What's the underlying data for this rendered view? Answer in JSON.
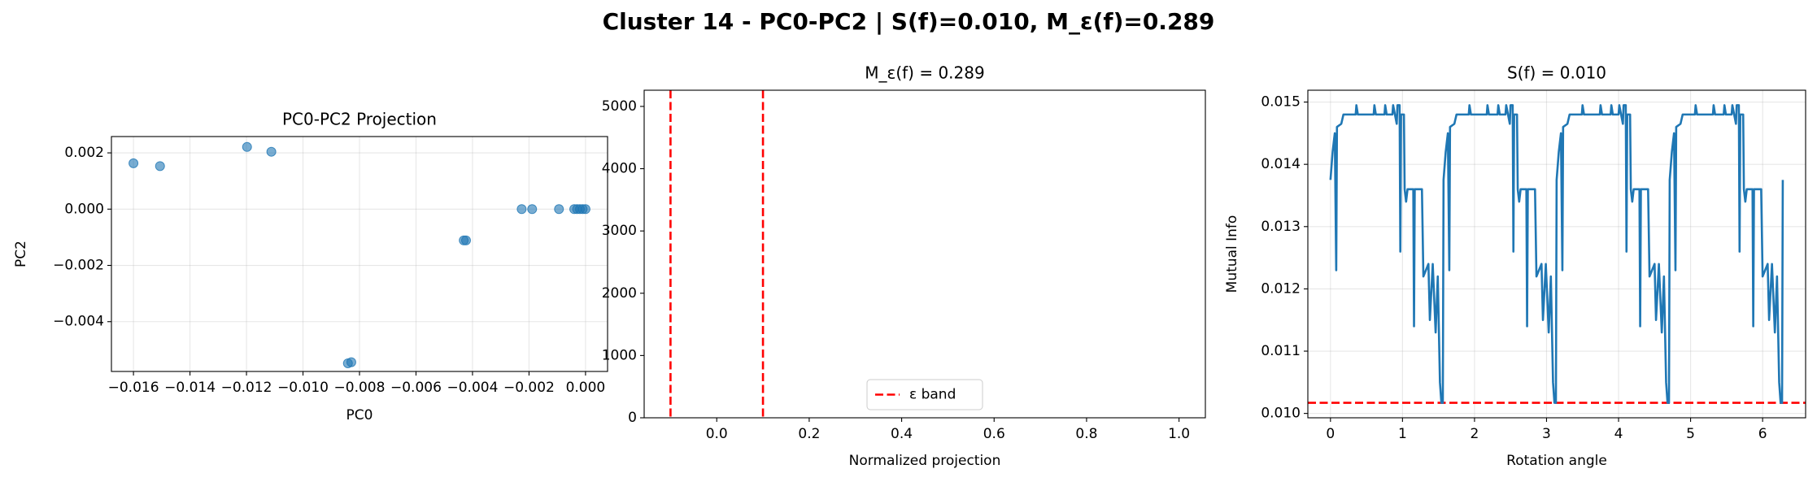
{
  "title": "Cluster 14 - PC0-PC2 | S(f)=0.010, M_ε(f)=0.289",
  "chart_data": [
    {
      "type": "scatter",
      "title": "PC0-PC2 Projection",
      "xlabel": "PC0",
      "ylabel": "PC2",
      "color": "#1f77b4",
      "grid": true,
      "x": [
        -0.016,
        -0.01506,
        -0.01198,
        -0.01112,
        -0.00431,
        -0.00423,
        -0.00829,
        -0.00841,
        -0.00226,
        -0.00189,
        -0.00094,
        -0.0004,
        -0.0003,
        -0.0002,
        -0.0001,
        0.0
      ],
      "values": [
        0.00163,
        0.00153,
        0.00221,
        0.00204,
        -0.00111,
        -0.00111,
        -0.00544,
        -0.00548,
        0.0,
        0.0,
        0.0,
        0.0,
        0.0,
        0.0,
        0.0,
        0.0
      ],
      "xlim": [
        -0.01678,
        0.00078
      ],
      "xticks": [
        {
          "value": -0.016,
          "label": "−0.016"
        },
        {
          "value": -0.014,
          "label": "−0.014"
        },
        {
          "value": -0.012,
          "label": "−0.012"
        },
        {
          "value": -0.01,
          "label": "−0.010"
        },
        {
          "value": -0.008,
          "label": "−0.008"
        },
        {
          "value": -0.006,
          "label": "−0.006"
        },
        {
          "value": -0.004,
          "label": "−0.004"
        },
        {
          "value": -0.002,
          "label": "−0.002"
        },
        {
          "value": 0.0,
          "label": "0.000"
        }
      ],
      "ylim": [
        -0.00577,
        0.00258
      ],
      "yticks": [
        {
          "value": -0.004,
          "label": "−0.004"
        },
        {
          "value": -0.002,
          "label": "−0.002"
        },
        {
          "value": 0.0,
          "label": "0.000"
        },
        {
          "value": 0.002,
          "label": "0.002"
        }
      ]
    },
    {
      "type": "vlines",
      "title": "M_ε(f) = 0.289",
      "xlabel": "Normalized projection",
      "grid": false,
      "legend": "lower center",
      "series": [
        {
          "name": "ε band",
          "color": "#ff0000",
          "values": [
            -0.1,
            0.1
          ]
        }
      ],
      "xlim": [
        -0.157,
        1.057
      ],
      "xticks": [
        {
          "value": 0.0,
          "label": "0.0"
        },
        {
          "value": 0.2,
          "label": "0.2"
        },
        {
          "value": 0.4,
          "label": "0.4"
        },
        {
          "value": 0.6,
          "label": "0.6"
        },
        {
          "value": 0.8,
          "label": "0.8"
        },
        {
          "value": 1.0,
          "label": "1.0"
        }
      ],
      "ylim": [
        0,
        5260
      ],
      "yticks": [
        0,
        1000,
        2000,
        3000,
        4000,
        5000
      ]
    },
    {
      "type": "line",
      "title": "S(f) = 0.010",
      "xlabel": "Rotation angle",
      "ylabel": "Mutual Info",
      "color": "#1f77b4",
      "grid": true,
      "hline": 0.01017,
      "hline_color": "#ff0000",
      "x": [
        0.0,
        0.03,
        0.06,
        0.08,
        0.09,
        0.15,
        0.18,
        0.35,
        0.36,
        0.38,
        0.6,
        0.61,
        0.63,
        0.75,
        0.76,
        0.78,
        0.86,
        0.87,
        0.92,
        0.93,
        0.96,
        0.97,
        0.98,
        1.02,
        1.03,
        1.05,
        1.07,
        1.15,
        1.16,
        1.17,
        1.27,
        1.29,
        1.36,
        1.38,
        1.42,
        1.46,
        1.49,
        1.52,
        1.54,
        1.56,
        1.57,
        1.6,
        1.63,
        1.65,
        1.66,
        1.72,
        1.75,
        1.92,
        1.93,
        1.95,
        2.17,
        2.18,
        2.2,
        2.32,
        2.33,
        2.35,
        2.43,
        2.44,
        2.49,
        2.5,
        2.53,
        2.54,
        2.55,
        2.59,
        2.6,
        2.62,
        2.64,
        2.72,
        2.73,
        2.74,
        2.84,
        2.86,
        2.93,
        2.95,
        2.99,
        3.03,
        3.06,
        3.09,
        3.11,
        3.13,
        3.14,
        3.17,
        3.2,
        3.22,
        3.23,
        3.29,
        3.32,
        3.49,
        3.5,
        3.52,
        3.74,
        3.75,
        3.77,
        3.89,
        3.9,
        3.92,
        4.0,
        4.01,
        4.06,
        4.07,
        4.1,
        4.11,
        4.12,
        4.16,
        4.17,
        4.19,
        4.21,
        4.29,
        4.3,
        4.31,
        4.41,
        4.43,
        4.5,
        4.52,
        4.56,
        4.6,
        4.63,
        4.66,
        4.68,
        4.7,
        4.71,
        4.74,
        4.77,
        4.79,
        4.8,
        4.86,
        4.89,
        5.06,
        5.07,
        5.09,
        5.31,
        5.32,
        5.34,
        5.46,
        5.47,
        5.49,
        5.57,
        5.58,
        5.63,
        5.64,
        5.67,
        5.68,
        5.69,
        5.73,
        5.74,
        5.76,
        5.78,
        5.86,
        5.87,
        5.88,
        5.98,
        6.0,
        6.07,
        6.09,
        6.13,
        6.17,
        6.2,
        6.23,
        6.25,
        6.27,
        6.28
      ],
      "values": [
        0.01375,
        0.0142,
        0.0145,
        0.0123,
        0.0146,
        0.01465,
        0.0148,
        0.0148,
        0.01495,
        0.0148,
        0.0148,
        0.01495,
        0.0148,
        0.0148,
        0.01495,
        0.0148,
        0.0148,
        0.01495,
        0.01465,
        0.01495,
        0.01495,
        0.0126,
        0.0148,
        0.0148,
        0.0136,
        0.0134,
        0.0136,
        0.0136,
        0.0114,
        0.0136,
        0.0136,
        0.0122,
        0.0124,
        0.0115,
        0.0124,
        0.0113,
        0.0122,
        0.0105,
        0.01017,
        0.01017,
        0.01375,
        0.0142,
        0.0145,
        0.0123,
        0.0146,
        0.01465,
        0.0148,
        0.0148,
        0.01495,
        0.0148,
        0.0148,
        0.01495,
        0.0148,
        0.0148,
        0.01495,
        0.0148,
        0.0148,
        0.01495,
        0.01465,
        0.01495,
        0.01495,
        0.0126,
        0.0148,
        0.0148,
        0.0136,
        0.0134,
        0.0136,
        0.0136,
        0.0114,
        0.0136,
        0.0136,
        0.0122,
        0.0124,
        0.0115,
        0.0124,
        0.0113,
        0.0122,
        0.0105,
        0.01017,
        0.01017,
        0.01375,
        0.0142,
        0.0145,
        0.0123,
        0.0146,
        0.01465,
        0.0148,
        0.0148,
        0.01495,
        0.0148,
        0.0148,
        0.01495,
        0.0148,
        0.0148,
        0.01495,
        0.0148,
        0.0148,
        0.01495,
        0.01465,
        0.01495,
        0.01495,
        0.0126,
        0.0148,
        0.0148,
        0.0136,
        0.0134,
        0.0136,
        0.0136,
        0.0114,
        0.0136,
        0.0136,
        0.0122,
        0.0124,
        0.0115,
        0.0124,
        0.0113,
        0.0122,
        0.0105,
        0.01017,
        0.01017,
        0.01375,
        0.0142,
        0.0145,
        0.0123,
        0.0146,
        0.01465,
        0.0148,
        0.0148,
        0.01495,
        0.0148,
        0.0148,
        0.01495,
        0.0148,
        0.0148,
        0.01495,
        0.0148,
        0.0148,
        0.01495,
        0.01465,
        0.01495,
        0.01495,
        0.0126,
        0.0148,
        0.0148,
        0.0136,
        0.0134,
        0.0136,
        0.0136,
        0.0114,
        0.0136,
        0.0136,
        0.0122,
        0.0124,
        0.0115,
        0.0124,
        0.0113,
        0.0122,
        0.0105,
        0.01017,
        0.01017,
        0.01375
      ],
      "xlim": [
        -0.314,
        6.597
      ],
      "xticks": [
        0,
        1,
        2,
        3,
        4,
        5,
        6
      ],
      "ylim": [
        0.00993,
        0.01519
      ],
      "yticks": [
        {
          "value": 0.01,
          "label": "0.010"
        },
        {
          "value": 0.011,
          "label": "0.011"
        },
        {
          "value": 0.012,
          "label": "0.012"
        },
        {
          "value": 0.013,
          "label": "0.013"
        },
        {
          "value": 0.014,
          "label": "0.014"
        },
        {
          "value": 0.015,
          "label": "0.015"
        }
      ]
    }
  ]
}
